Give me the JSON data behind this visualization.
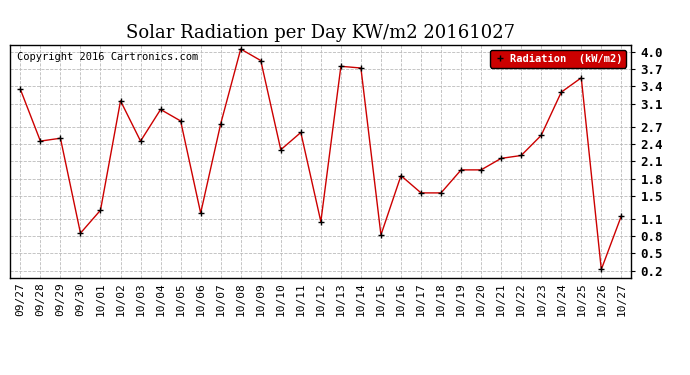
{
  "title": "Solar Radiation per Day KW/m2 20161027",
  "copyright_text": "Copyright 2016 Cartronics.com",
  "legend_label": "Radiation  (kW/m2)",
  "x_labels": [
    "09/27",
    "09/28",
    "09/29",
    "09/30",
    "10/01",
    "10/02",
    "10/03",
    "10/04",
    "10/05",
    "10/06",
    "10/07",
    "10/08",
    "10/09",
    "10/10",
    "10/11",
    "10/12",
    "10/13",
    "10/14",
    "10/15",
    "10/16",
    "10/17",
    "10/18",
    "10/19",
    "10/20",
    "10/21",
    "10/22",
    "10/23",
    "10/24",
    "10/25",
    "10/26",
    "10/27"
  ],
  "y_values": [
    3.35,
    2.45,
    2.5,
    0.85,
    1.25,
    3.15,
    2.45,
    3.0,
    2.8,
    1.2,
    2.75,
    4.05,
    3.85,
    2.3,
    2.6,
    1.05,
    3.75,
    3.72,
    0.82,
    1.85,
    1.55,
    1.55,
    1.95,
    1.95,
    2.15,
    2.2,
    2.55,
    3.3,
    3.55,
    0.22,
    1.15
  ],
  "line_color": "#cc0000",
  "marker_color": "#000000",
  "background_color": "#ffffff",
  "plot_bg_color": "#ffffff",
  "grid_color": "#bbbbbb",
  "legend_bg_color": "#cc0000",
  "legend_text_color": "#ffffff",
  "ylim_min": 0.08,
  "ylim_max": 4.12,
  "yticks": [
    4.0,
    3.7,
    3.4,
    3.1,
    2.7,
    2.4,
    2.1,
    1.8,
    1.5,
    1.1,
    0.8,
    0.5,
    0.2
  ],
  "title_fontsize": 13,
  "tick_fontsize": 8,
  "copyright_fontsize": 7.5
}
